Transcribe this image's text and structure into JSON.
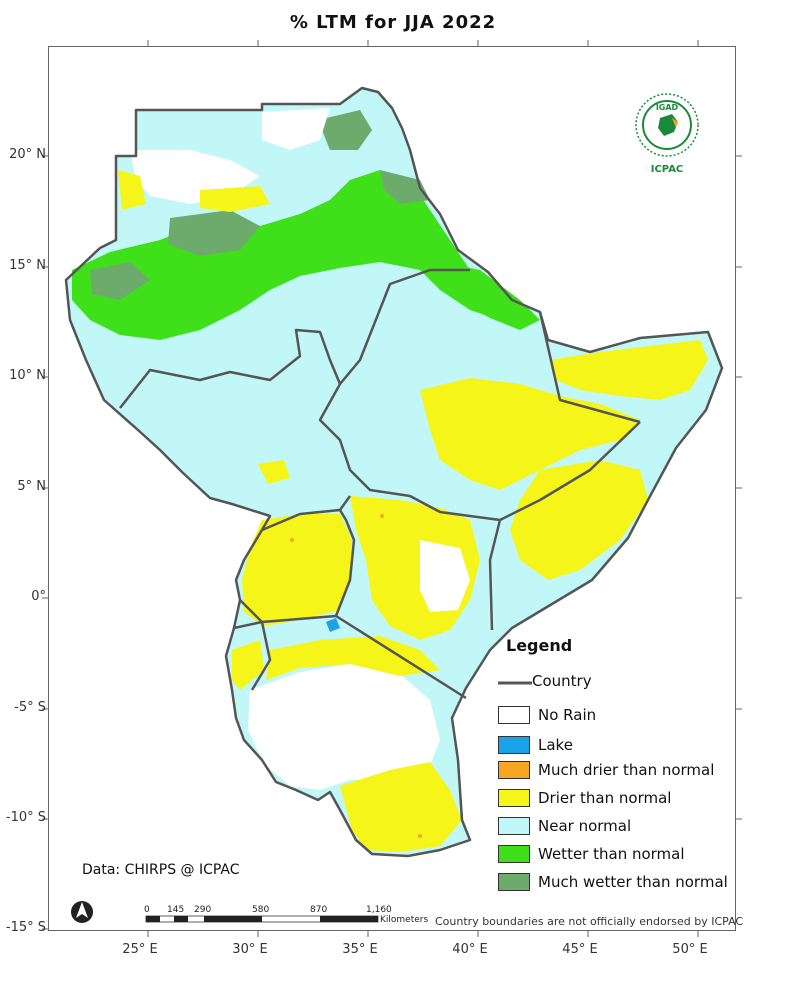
{
  "title": "% LTM for JJA 2022",
  "lat_labels": [
    "20° N",
    "15° N",
    "10° N",
    "5° N",
    "0°",
    "-5° S",
    "-10° S",
    "-15° S"
  ],
  "lon_labels": [
    "25° E",
    "30° E",
    "35° E",
    "40° E",
    "45° E",
    "50° E"
  ],
  "legend": {
    "title": "Legend",
    "country_label": "Country",
    "items": [
      {
        "label": "No Rain",
        "color": "#ffffff"
      },
      {
        "label": "Lake",
        "color": "#1aa3e6"
      },
      {
        "label": "Much drier than normal",
        "color": "#f5a623"
      },
      {
        "label": "Drier than normal",
        "color": "#f5f51a"
      },
      {
        "label": "Near normal",
        "color": "#c2f7f7"
      },
      {
        "label": "Wetter than normal",
        "color": "#3fe01a"
      },
      {
        "label": "Much wetter than normal",
        "color": "#6dab6d"
      }
    ]
  },
  "credit": "Data: CHIRPS @ ICPAC",
  "scale": {
    "ticks": [
      "0",
      "145",
      "290",
      "580",
      "870",
      "1,160"
    ],
    "unit": "Kilometers"
  },
  "disclaimer": "Country boundaries are not officially endorsed by ICPAC",
  "logo": {
    "top_text": "IGAD",
    "bottom_text": "ICPAC"
  }
}
